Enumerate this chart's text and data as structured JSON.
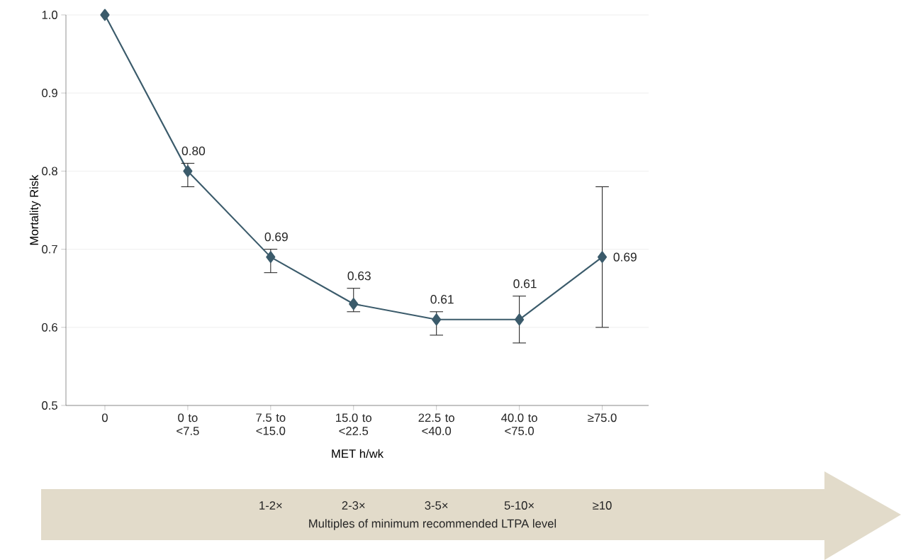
{
  "chart_data": {
    "type": "line",
    "xlabel": "MET h/wk",
    "ylabel": "Mortality Risk",
    "categories": [
      "0",
      "0 to <7.5",
      "7.5 to <15.0",
      "15.0 to <22.5",
      "22.5 to <40.0",
      "40.0 to <75.0",
      "≥75.0"
    ],
    "values": [
      1.0,
      0.8,
      0.69,
      0.63,
      0.61,
      0.61,
      0.69
    ],
    "errors": [
      null,
      [
        0.78,
        0.81
      ],
      [
        0.67,
        0.7
      ],
      [
        0.62,
        0.65
      ],
      [
        0.59,
        0.62
      ],
      [
        0.58,
        0.64
      ],
      [
        0.6,
        0.78
      ]
    ],
    "value_labels": [
      null,
      "0.80",
      "0.69",
      "0.63",
      "0.61",
      "0.61",
      "0.69"
    ],
    "color": "#3b5b6b",
    "marker": "diamond",
    "line_style": "solid",
    "ylim": [
      0.5,
      1.0
    ],
    "yticks": [
      0.5,
      0.6,
      0.7,
      0.8,
      0.9,
      {
        "value": 1.0,
        "label": "1.0"
      }
    ],
    "grid": "y",
    "annotations": [
      "1-2×",
      "2-3×",
      "3-5×",
      "5-10×",
      "≥10",
      "Multiples of minimum recommended LTPA level"
    ]
  }
}
